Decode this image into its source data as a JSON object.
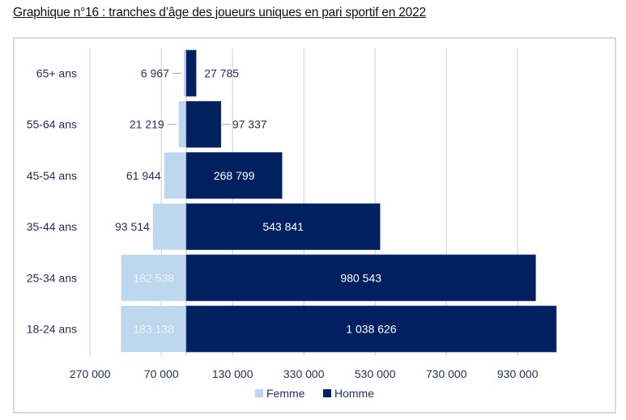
{
  "chart_data": {
    "type": "bar",
    "orientation": "horizontal",
    "style": "population-pyramid",
    "title": "Graphique n°16 : tranches d’âge des joueurs uniques en pari sportif en 2022",
    "categories": [
      "65+ ans",
      "55-64 ans",
      "45-54 ans",
      "35-44 ans",
      "25-34 ans",
      "18-24 ans"
    ],
    "series": [
      {
        "name": "Femme",
        "color": "#bdd7ee",
        "direction": "left",
        "values": [
          6967,
          21219,
          61944,
          93514,
          182538,
          183138
        ],
        "labels": [
          "6 967",
          "21 219",
          "61 944",
          "93 514",
          "182 538",
          "183 138"
        ]
      },
      {
        "name": "Homme",
        "color": "#002060",
        "direction": "right",
        "values": [
          27785,
          97337,
          268799,
          543841,
          980543,
          1038626
        ],
        "labels": [
          "27 785",
          "97 337",
          "268 799",
          "543 841",
          "980 543",
          "1 038 626"
        ]
      }
    ],
    "xaxis": {
      "tick_values": [
        -270000,
        -70000,
        130000,
        330000,
        530000,
        730000,
        930000
      ],
      "tick_labels": [
        "270 000",
        "70 000",
        "130 000",
        "330 000",
        "530 000",
        "730 000",
        "930 000"
      ],
      "range": [
        -270000,
        1130000
      ],
      "zero_value": 0,
      "gridlines": true
    },
    "legend": {
      "position": "bottom",
      "entries": [
        "Femme",
        "Homme"
      ]
    },
    "xlabel": "",
    "ylabel": ""
  }
}
